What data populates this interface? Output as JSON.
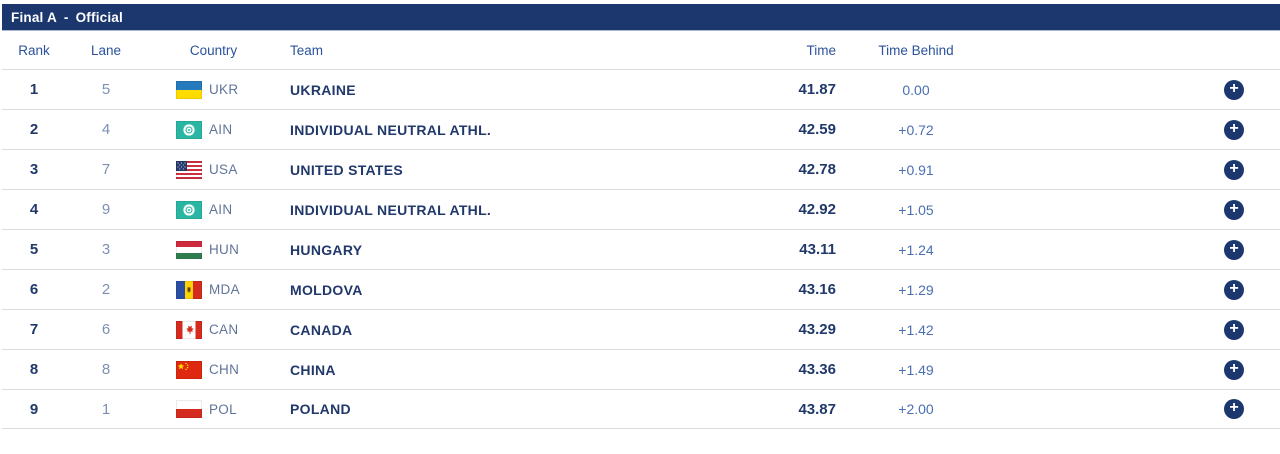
{
  "colors": {
    "navy": "#1b376e",
    "header-text": "#2b529e",
    "dark-text": "#21386b",
    "muted-blue": "#7d8fb3",
    "code-text": "#60749a",
    "behind-text": "#4a6fb3",
    "divider": "#dadbdf",
    "bar-border": "#aab6d2",
    "ain-teal": "#2bb6a3"
  },
  "title": {
    "event": "Final A",
    "separator": "-",
    "status": "Official"
  },
  "table": {
    "headers": {
      "rank": "Rank",
      "lane": "Lane",
      "country": "Country",
      "team": "Team",
      "time": "Time",
      "behind": "Time Behind"
    },
    "expand_icon": "+",
    "rows": [
      {
        "rank": "1",
        "lane": "5",
        "flag": "UKR",
        "code": "UKR",
        "team": "UKRAINE",
        "time": "41.87",
        "behind": "0.00"
      },
      {
        "rank": "2",
        "lane": "4",
        "flag": "AIN",
        "code": "AIN",
        "team": "INDIVIDUAL NEUTRAL ATHL.",
        "time": "42.59",
        "behind": "+0.72"
      },
      {
        "rank": "3",
        "lane": "7",
        "flag": "USA",
        "code": "USA",
        "team": "UNITED STATES",
        "time": "42.78",
        "behind": "+0.91"
      },
      {
        "rank": "4",
        "lane": "9",
        "flag": "AIN",
        "code": "AIN",
        "team": "INDIVIDUAL NEUTRAL ATHL.",
        "time": "42.92",
        "behind": "+1.05"
      },
      {
        "rank": "5",
        "lane": "3",
        "flag": "HUN",
        "code": "HUN",
        "team": "HUNGARY",
        "time": "43.11",
        "behind": "+1.24"
      },
      {
        "rank": "6",
        "lane": "2",
        "flag": "MDA",
        "code": "MDA",
        "team": "MOLDOVA",
        "time": "43.16",
        "behind": "+1.29"
      },
      {
        "rank": "7",
        "lane": "6",
        "flag": "CAN",
        "code": "CAN",
        "team": "CANADA",
        "time": "43.29",
        "behind": "+1.42"
      },
      {
        "rank": "8",
        "lane": "8",
        "flag": "CHN",
        "code": "CHN",
        "team": "CHINA",
        "time": "43.36",
        "behind": "+1.49"
      },
      {
        "rank": "9",
        "lane": "1",
        "flag": "POL",
        "code": "POL",
        "team": "POLAND",
        "time": "43.87",
        "behind": "+2.00"
      }
    ]
  }
}
